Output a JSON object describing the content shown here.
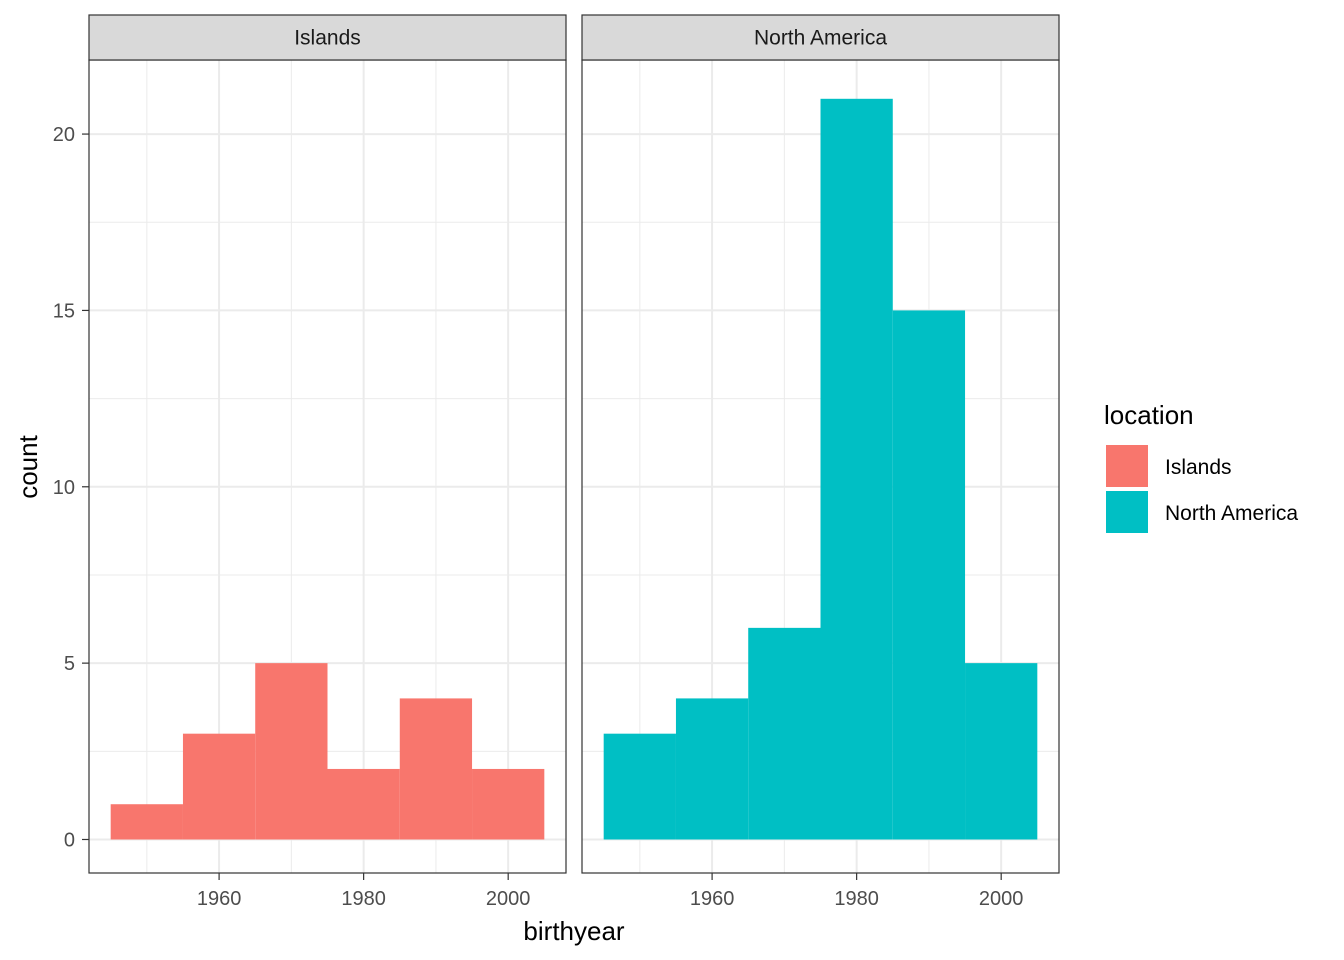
{
  "chart_data": {
    "type": "bar",
    "subtype": "faceted-histogram",
    "title": "",
    "xlabel": "birthyear",
    "ylabel": "count",
    "xlim": [
      1942,
      2008
    ],
    "ylim": [
      -0.95,
      22.1
    ],
    "x_ticks": [
      1960,
      1980,
      2000
    ],
    "x_minor_ticks": [
      1950,
      1970,
      1990
    ],
    "y_ticks": [
      0,
      5,
      10,
      15,
      20
    ],
    "y_minor_ticks": [
      2.5,
      7.5,
      12.5,
      17.5
    ],
    "bin_width": 10,
    "bins": [
      1950,
      1960,
      1970,
      1980,
      1990,
      2000
    ],
    "grid": true,
    "legend": {
      "title": "location",
      "placement": "right",
      "entries": [
        "Islands",
        "North America"
      ]
    },
    "colors": {
      "Islands": "#F8766D",
      "North America": "#00BFC4"
    },
    "series": [
      {
        "name": "Islands",
        "values": [
          1,
          3,
          5,
          2,
          4,
          2
        ]
      },
      {
        "name": "North America",
        "values": [
          3,
          4,
          6,
          21,
          15,
          5
        ]
      }
    ]
  }
}
